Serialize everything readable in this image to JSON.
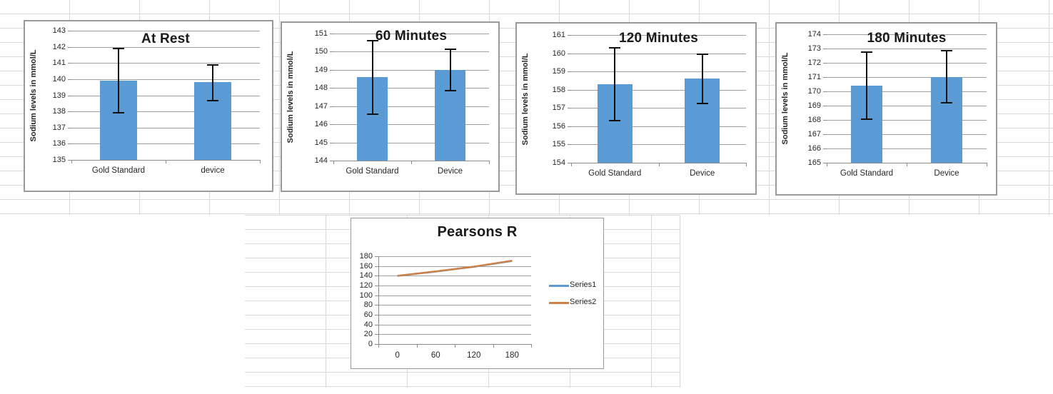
{
  "sheet": {
    "background": "#ffffff",
    "gridline_color": "#d9d9d9"
  },
  "chart_style": {
    "border_color": "#9a9a9a",
    "plot_gridline_color": "#9f9f9f",
    "axis_color": "#8c8c8c",
    "error_bar_color": "#111111",
    "title_color": "#1a1a1a",
    "text_color": "#262626"
  },
  "chart_data": [
    {
      "type": "bar",
      "title": "At Rest",
      "ylabel": "Sodium levels in mmol/L",
      "categories": [
        "Gold Standard",
        "device"
      ],
      "values": [
        139.9,
        139.8
      ],
      "error_bars": [
        [
          137.9,
          141.9
        ],
        [
          138.65,
          140.9
        ]
      ],
      "ylim": [
        135,
        143
      ],
      "ytick_step": 1,
      "grid": true,
      "legend_position": "none",
      "bar_color": "#5B9BD5"
    },
    {
      "type": "bar",
      "title": "60 Minutes",
      "ylabel": "Sodium levels in mmol/L",
      "categories": [
        "Gold Standard",
        "Device"
      ],
      "values": [
        148.6,
        149
      ],
      "error_bars": [
        [
          146.55,
          150.6
        ],
        [
          147.85,
          150.15
        ]
      ],
      "ylim": [
        144,
        151
      ],
      "ytick_step": 1,
      "grid": true,
      "legend_position": "none",
      "bar_color": "#5B9BD5"
    },
    {
      "type": "bar",
      "title": "120 Minutes",
      "ylabel": "Sodium levels in mmol/L",
      "categories": [
        "Gold Standard",
        "Device"
      ],
      "values": [
        158.3,
        158.6
      ],
      "error_bars": [
        [
          156.3,
          160.3
        ],
        [
          157.25,
          159.95
        ]
      ],
      "ylim": [
        154,
        161
      ],
      "ytick_step": 1,
      "grid": true,
      "legend_position": "none",
      "bar_color": "#5B9BD5"
    },
    {
      "type": "bar",
      "title": "180 Minutes",
      "ylabel": "Sodium levels in mmol/L",
      "categories": [
        "Gold Standard",
        "Device"
      ],
      "values": [
        170.4,
        171
      ],
      "error_bars": [
        [
          168.05,
          172.75
        ],
        [
          169.2,
          172.85
        ]
      ],
      "ylim": [
        165,
        174
      ],
      "ytick_step": 1,
      "grid": true,
      "legend_position": "none",
      "bar_color": "#5B9BD5"
    },
    {
      "type": "line",
      "title": "Pearsons R",
      "categories": [
        "0",
        "60",
        "120",
        "180"
      ],
      "series": [
        {
          "name": "Series1",
          "color": "#5B9BD5",
          "values": [
            139.9,
            148.6,
            158.3,
            170.4
          ]
        },
        {
          "name": "Series2",
          "color": "#CE8046",
          "values": [
            139.8,
            149,
            158.6,
            171
          ]
        }
      ],
      "ylim": [
        0,
        180
      ],
      "ytick_step": 20,
      "grid": true,
      "legend_position": "right"
    }
  ]
}
